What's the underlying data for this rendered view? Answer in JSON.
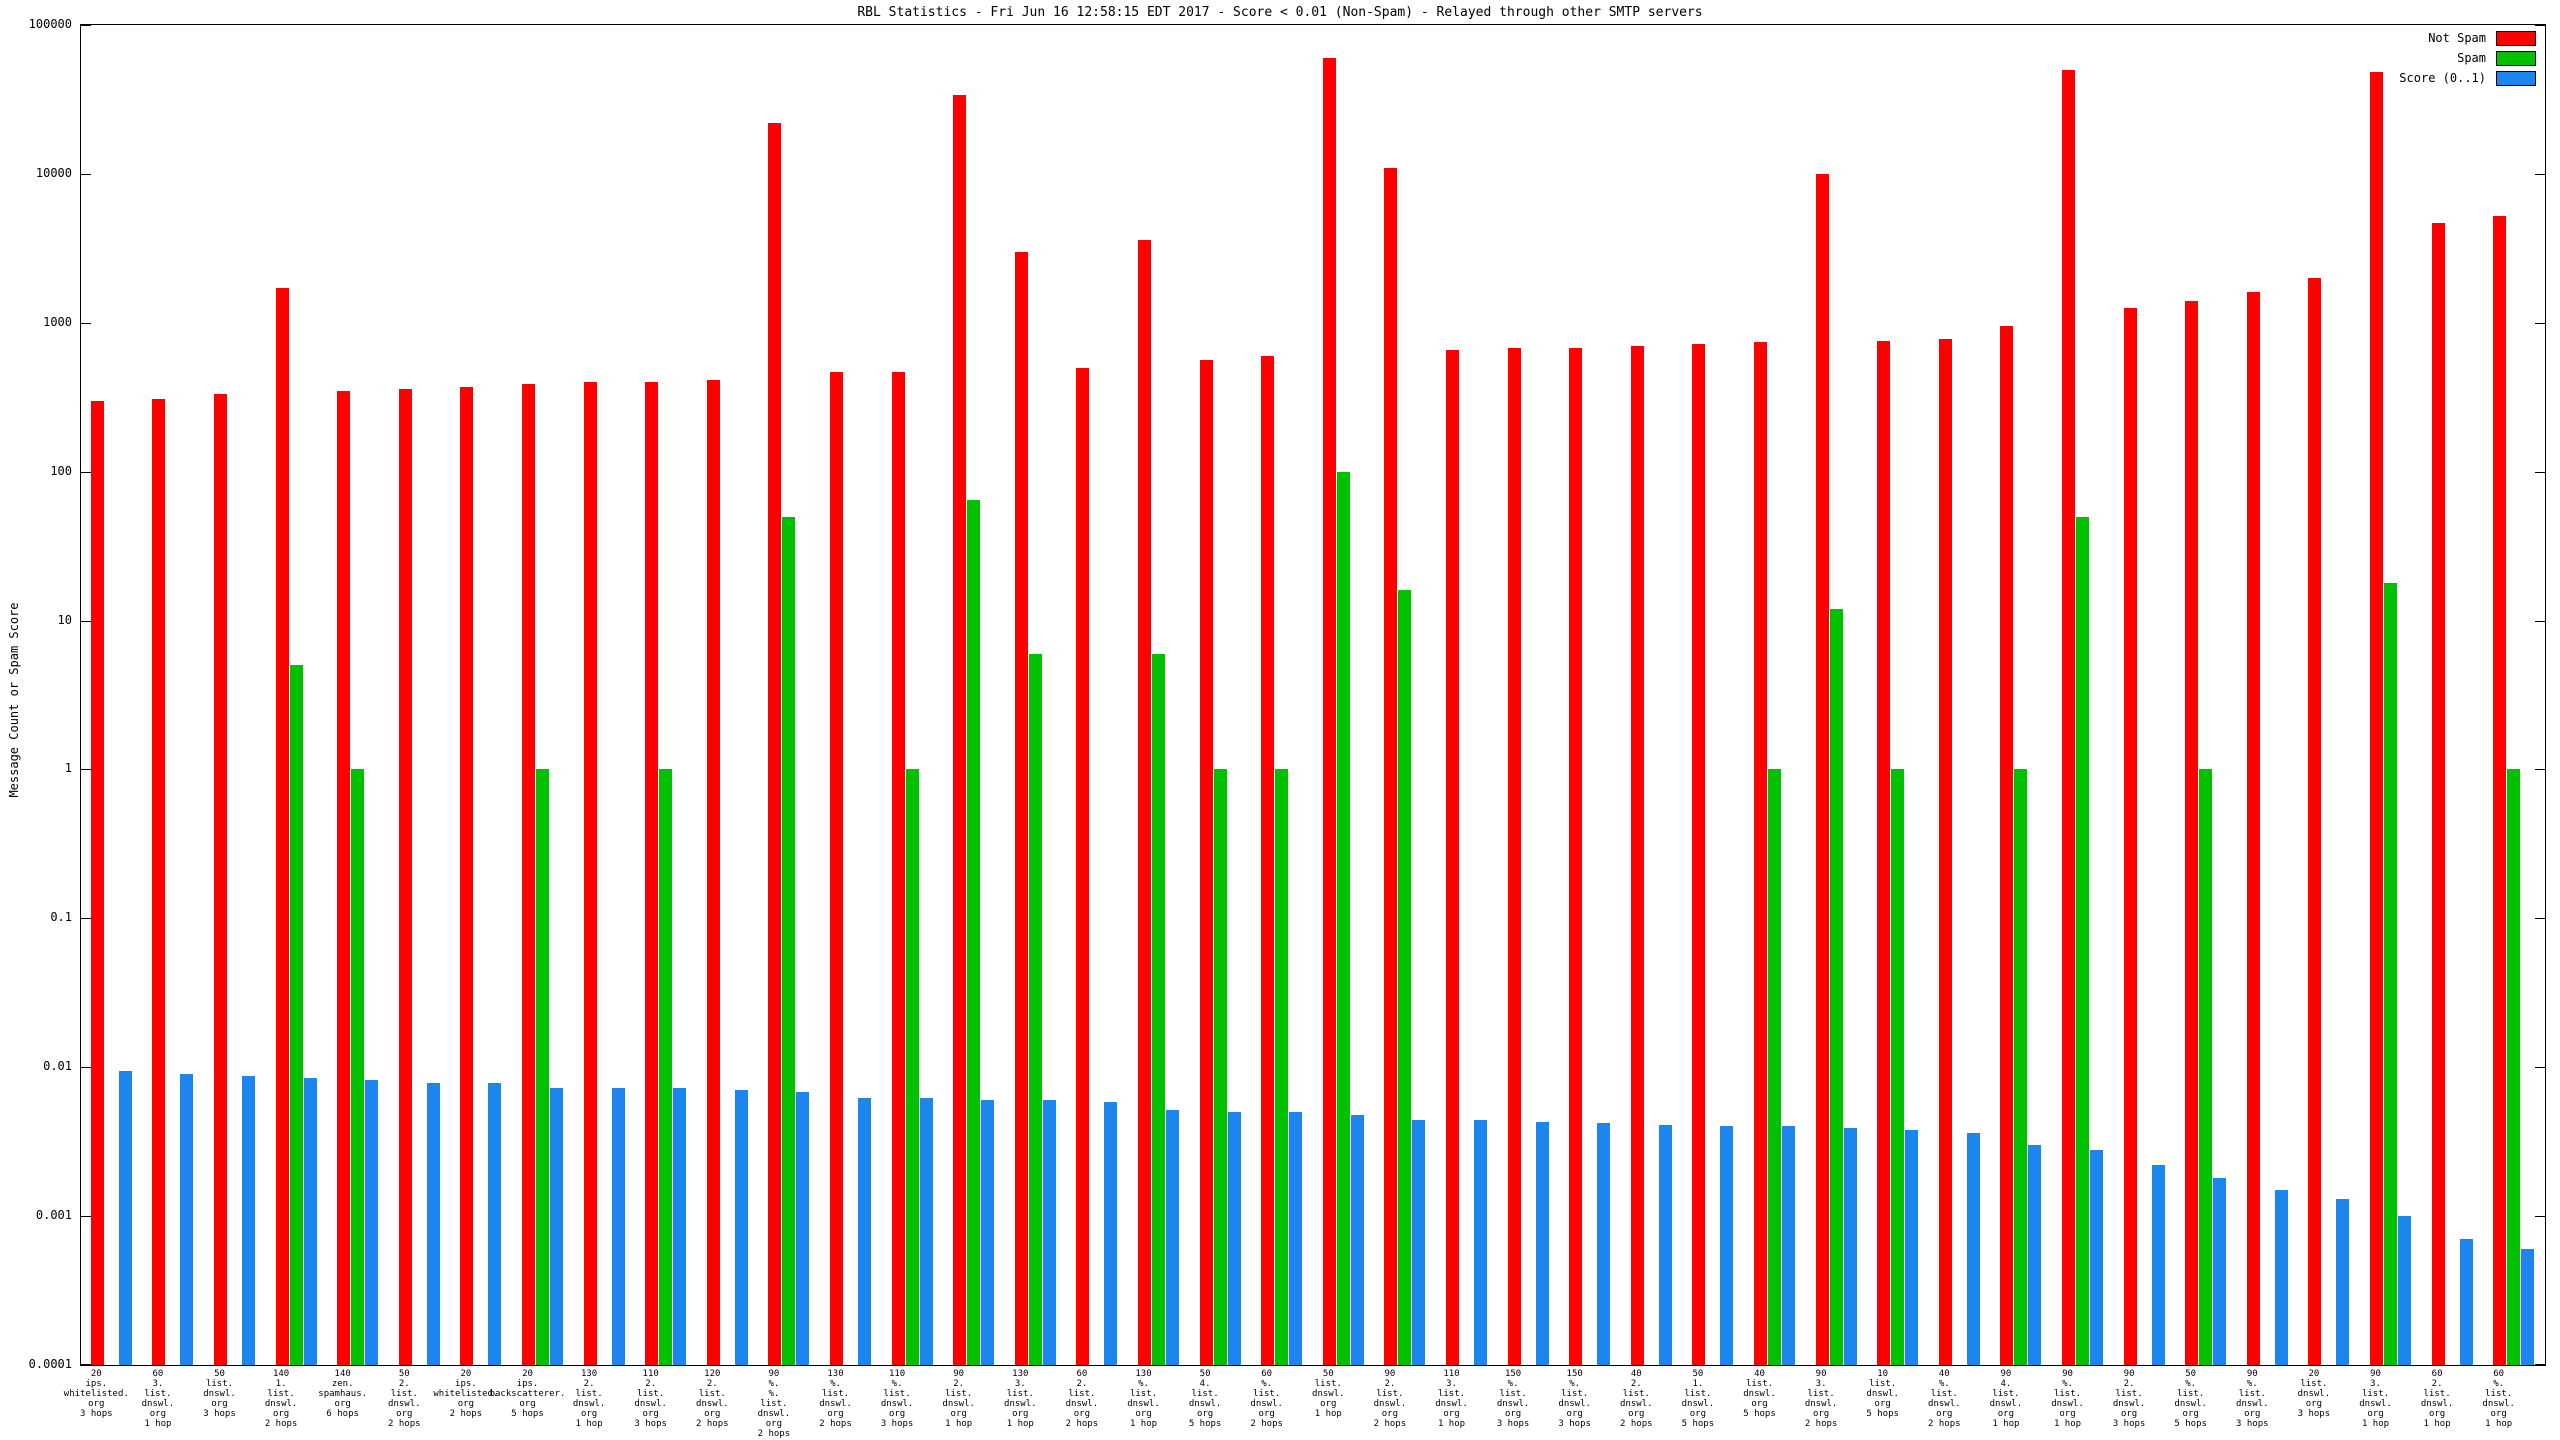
{
  "title": "RBL Statistics - Fri Jun 16 12:58:15 EDT 2017 - Score < 0.01 (Non-Spam) - Relayed through other SMTP servers",
  "ylabel": "Message Count or Spam Score",
  "legend": {
    "position": "top-right",
    "items": [
      {
        "label": "Not Spam",
        "color": "#ff0000"
      },
      {
        "label": "Spam",
        "color": "#00c000"
      },
      {
        "label": "Score (0..1)",
        "color": "#1c86ee"
      }
    ]
  },
  "chart_data": {
    "type": "bar",
    "title": "RBL Statistics - Fri Jun 16 12:58:15 EDT 2017 - Score < 0.01 (Non-Spam) - Relayed through other SMTP servers",
    "xlabel": "",
    "ylabel": "Message Count or Spam Score",
    "y_scale": "log",
    "ylim": [
      0.0001,
      100000
    ],
    "ytick_labels": [
      "100000",
      "10000",
      "1000",
      "100",
      "10",
      "1",
      "0.1",
      "0.01",
      "0.001",
      "0.0001"
    ],
    "grid": false,
    "legend_position": "top-right",
    "categories": [
      "20\nips.\nwhitelisted.\norg\n3 hops",
      "60\n3.\nlist.\ndnswl.\norg\n1 hop",
      "50\nlist.\ndnswl.\norg\n3 hops",
      "140\n1.\nlist.\ndnswl.\norg\n2 hops",
      "140\nzen.\nspamhaus.\norg\n6 hops",
      "50\n2.\nlist.\ndnswl.\norg\n2 hops",
      "20\nips.\nwhitelisted.\norg\n2 hops",
      "20\nips.\nbackscatterer.\norg\n5 hops",
      "130\n2.\nlist.\ndnswl.\norg\n1 hop",
      "110\n2.\nlist.\ndnswl.\norg\n3 hops",
      "120\n2.\nlist.\ndnswl.\norg\n2 hops",
      "90\n%.\n%.\nlist.\ndnswl.\norg\n2 hops",
      "130\n%.\nlist.\ndnswl.\norg\n2 hops",
      "110\n%.\nlist.\ndnswl.\norg\n3 hops",
      "90\n2.\nlist.\ndnswl.\norg\n1 hop",
      "130\n3.\nlist.\ndnswl.\norg\n1 hop",
      "60\n2.\nlist.\ndnswl.\norg\n2 hops",
      "130\n%.\nlist.\ndnswl.\norg\n1 hop",
      "50\n4.\nlist.\ndnswl.\norg\n5 hops",
      "60\n%.\nlist.\ndnswl.\norg\n2 hops",
      "50\nlist.\ndnswl.\norg\n1 hop",
      "90\n2.\nlist.\ndnswl.\norg\n2 hops",
      "110\n3.\nlist.\ndnswl.\norg\n1 hop",
      "150\n%.\nlist.\ndnswl.\norg\n3 hops",
      "150\n%.\nlist.\ndnswl.\norg\n3 hops",
      "40\n2.\nlist.\ndnswl.\norg\n2 hops",
      "50\n1.\nlist.\ndnswl.\norg\n5 hops",
      "40\nlist.\ndnswl.\norg\n5 hops",
      "90\n3.\nlist.\ndnswl.\norg\n2 hops",
      "10\nlist.\ndnswl.\norg\n5 hops",
      "40\n%.\nlist.\ndnswl.\norg\n2 hops",
      "90\n4.\nlist.\ndnswl.\norg\n1 hop",
      "90\n%.\nlist.\ndnswl.\norg\n1 hop",
      "90\n2.\nlist.\ndnswl.\norg\n3 hops",
      "50\n%.\nlist.\ndnswl.\norg\n5 hops",
      "90\n%.\nlist.\ndnswl.\norg\n3 hops",
      "20\nlist.\ndnswl.\norg\n3 hops",
      "90\n3.\nlist.\ndnswl.\norg\n1 hop",
      "60\n2.\nlist.\ndnswl.\norg\n1 hop",
      "60\n%.\nlist.\ndnswl.\norg\n1 hop"
    ],
    "series": [
      {
        "name": "Not Spam",
        "key": "not-spam",
        "color": "#ff0000",
        "values": [
          300,
          310,
          330,
          1700,
          350,
          360,
          370,
          390,
          400,
          400,
          410,
          22000,
          470,
          470,
          34000,
          3000,
          500,
          3600,
          560,
          600,
          60000,
          11000,
          660,
          680,
          680,
          700,
          720,
          740,
          10000,
          760,
          780,
          950,
          50000,
          1250,
          1400,
          1600,
          2000,
          48000,
          4700,
          5200
        ]
      },
      {
        "name": "Spam",
        "key": "spam",
        "color": "#00c000",
        "values": [
          0,
          0,
          0,
          5,
          1,
          0,
          0,
          1,
          0,
          1,
          0,
          50,
          0,
          1,
          65,
          6,
          0,
          6,
          1,
          1,
          100,
          16,
          0,
          0,
          0,
          0,
          0,
          1,
          12,
          1,
          0,
          1,
          50,
          0,
          1,
          0,
          0,
          18,
          0,
          1
        ]
      },
      {
        "name": "Score (0..1)",
        "key": "score",
        "color": "#1c86ee",
        "values": [
          0.0095,
          0.009,
          0.0088,
          0.0085,
          0.0082,
          0.0078,
          0.0078,
          0.0072,
          0.0072,
          0.0072,
          0.007,
          0.0068,
          0.0062,
          0.0062,
          0.006,
          0.006,
          0.0058,
          0.0052,
          0.005,
          0.005,
          0.0048,
          0.0044,
          0.0044,
          0.0043,
          0.0042,
          0.0041,
          0.004,
          0.004,
          0.0039,
          0.0038,
          0.0036,
          0.003,
          0.0028,
          0.0022,
          0.0018,
          0.0015,
          0.0013,
          0.001,
          0.0007,
          0.0006
        ]
      }
    ]
  }
}
